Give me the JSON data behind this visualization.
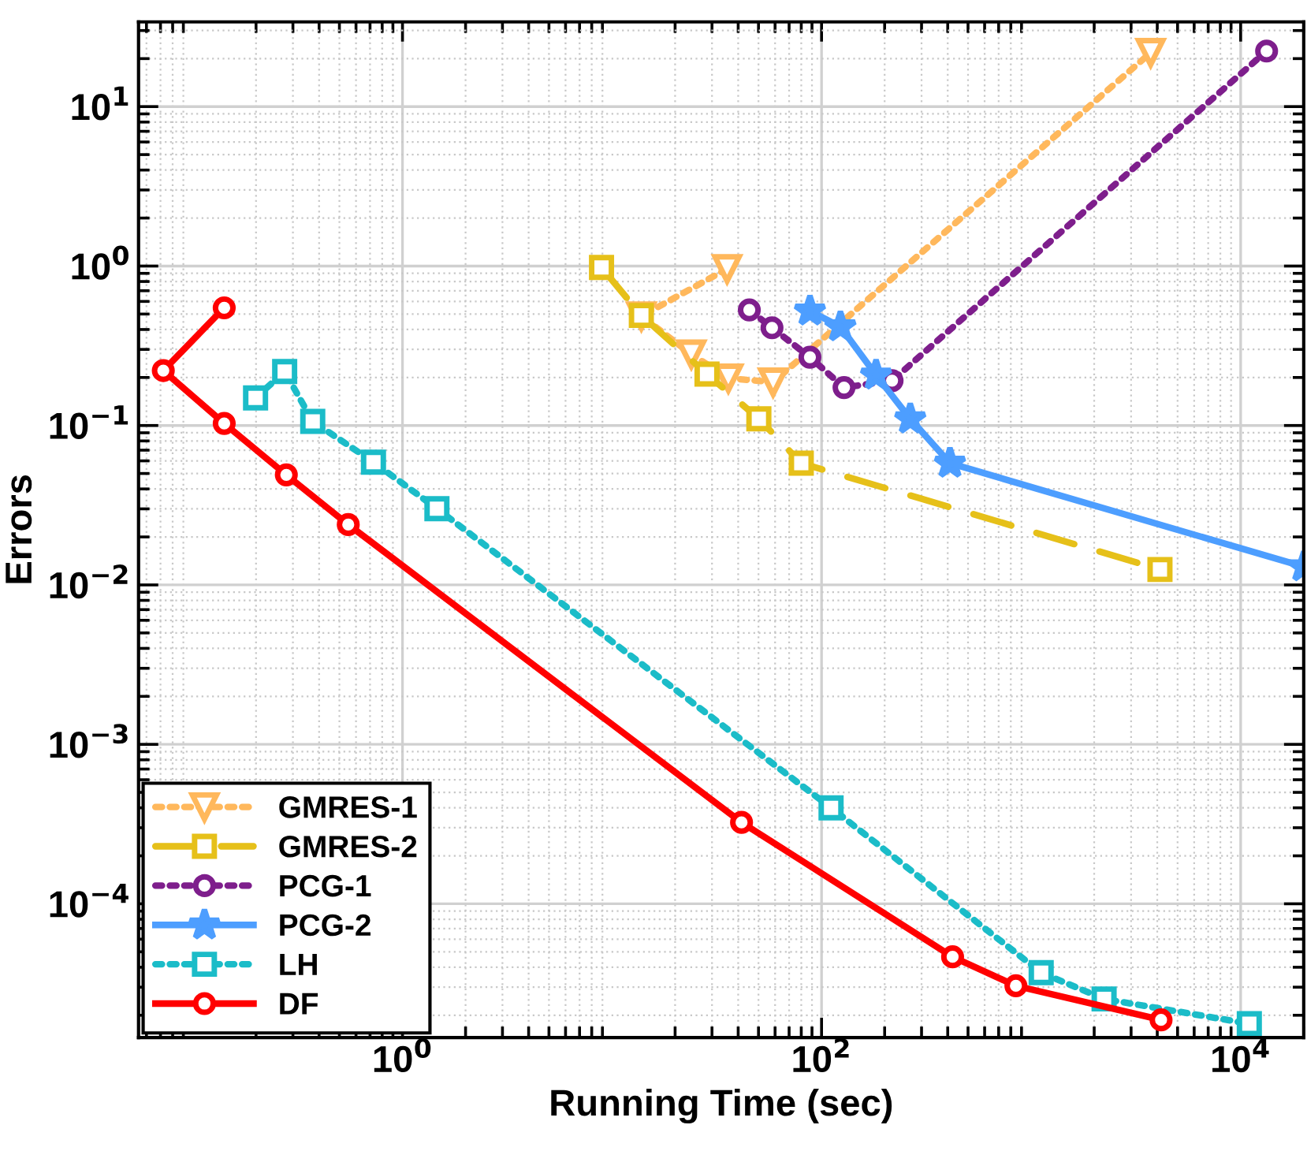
{
  "chart_data": {
    "type": "line",
    "xlabel": "Running Time (sec)",
    "ylabel": "Errors",
    "log": "xy",
    "grid": true,
    "legend": "bottom left",
    "xlim": [
      0.055,
      20000
    ],
    "ylim": [
      1.45e-05,
      34
    ],
    "xticks": [
      {
        "value": 1,
        "label": "10$^{0}$"
      },
      {
        "value": 100,
        "label": "10$^{2}$"
      },
      {
        "value": 10000,
        "label": "10$^{4}$"
      }
    ],
    "yticks": [
      {
        "value": 0.0001,
        "label": "10$^{−4}$"
      },
      {
        "value": 0.001,
        "label": "10$^{−3}$"
      },
      {
        "value": 0.01,
        "label": "10$^{−2}$"
      },
      {
        "value": 0.1,
        "label": "10$^{−1}$"
      },
      {
        "value": 1,
        "label": "10$^{0}$"
      },
      {
        "value": 10,
        "label": "10$^{1}$"
      }
    ],
    "series": [
      {
        "name": "GMRES-1",
        "color": "#ffb85c",
        "marker": "triangle",
        "line_style": "dotted",
        "x": [
          35.4,
          13.8,
          23.9,
          35.9,
          58.7,
          3720
        ],
        "values": [
          0.96,
          0.485,
          0.28,
          0.198,
          0.187,
          21.8
        ]
      },
      {
        "name": "GMRES-2",
        "color": "#e6c019",
        "marker": "square",
        "line_style": "dashed",
        "x": [
          8.91,
          13.8,
          28.4,
          50.2,
          80,
          4120
        ],
        "values": [
          0.98,
          0.49,
          0.21,
          0.11,
          0.058,
          0.0125
        ]
      },
      {
        "name": "PCG-1",
        "color": "#7e1e8c",
        "marker": "circle",
        "line_style": "dotted",
        "x": [
          45.2,
          58,
          88,
          128,
          217,
          13300
        ],
        "values": [
          0.531,
          0.41,
          0.268,
          0.173,
          0.191,
          22.3
        ]
      },
      {
        "name": "PCG-2",
        "color": "#4d9eff",
        "marker": "star",
        "line_style": "solid",
        "x": [
          88,
          123,
          182,
          265,
          410,
          20000
        ],
        "values": [
          0.523,
          0.416,
          0.207,
          0.11,
          0.058,
          0.013
        ]
      },
      {
        "name": "LH",
        "color": "#1bbcc8",
        "marker": "square",
        "line_style": "dotted",
        "x": [
          0.199,
          0.274,
          0.373,
          0.727,
          1.46,
          111,
          1117,
          2230,
          11000
        ],
        "values": [
          0.149,
          0.218,
          0.106,
          0.0589,
          0.0301,
          0.0004,
          3.7e-05,
          2.53e-05,
          1.77e-05
        ]
      },
      {
        "name": "DF",
        "color": "#ff0000",
        "marker": "circle",
        "line_style": "solid",
        "x": [
          0.141,
          0.0722,
          0.141,
          0.279,
          0.551,
          41.5,
          422,
          846,
          4170
        ],
        "values": [
          0.547,
          0.221,
          0.103,
          0.049,
          0.0239,
          0.000324,
          4.65e-05,
          3.06e-05,
          1.87e-05
        ]
      }
    ]
  }
}
